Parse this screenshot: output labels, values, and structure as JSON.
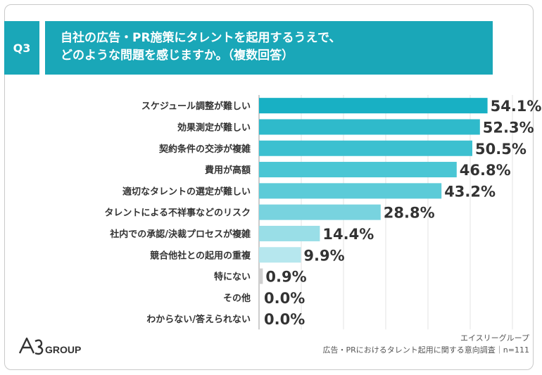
{
  "badge": "Q3",
  "header": {
    "line1": "自社の広告・PR施策にタレントを起用するうえで、",
    "line2": "どのような問題を感じますか。（複数回答）"
  },
  "chart_data": {
    "type": "bar",
    "orientation": "horizontal",
    "categories": [
      "スケジュール調整が難しい",
      "効果測定が難しい",
      "契約条件の交渉が複雑",
      "費用が高額",
      "適切なタレントの選定が難しい",
      "タレントによる不祥事などのリスク",
      "社内での承認/決裁プロセスが複雑",
      "競合他社との起用の重複",
      "特にない",
      "その他",
      "わからない/答えられない"
    ],
    "values": [
      54.1,
      52.3,
      50.5,
      46.8,
      43.2,
      28.8,
      14.4,
      9.9,
      0.9,
      0.0,
      0.0
    ],
    "value_labels": [
      "54.1%",
      "52.3%",
      "50.5%",
      "46.8%",
      "43.2%",
      "28.8%",
      "14.4%",
      "9.9%",
      "0.9%",
      "0.0%",
      "0.0%"
    ],
    "bar_colors": [
      "#18b0c4",
      "#2fbacb",
      "#3cc0d0",
      "#4ac6d4",
      "#5ccbd8",
      "#78d3df",
      "#99dee7",
      "#b6e7ee",
      "#cfcfcf",
      "#cfcfcf",
      "#cfcfcf"
    ],
    "xlim": [
      0,
      60
    ],
    "grid": true
  },
  "logo": {
    "brand": "A3",
    "suffix": "GROUP"
  },
  "source": {
    "line1": "エイスリーグループ",
    "line2": "広告・PRにおけるタレント起用に関する意向調査｜n=111"
  }
}
